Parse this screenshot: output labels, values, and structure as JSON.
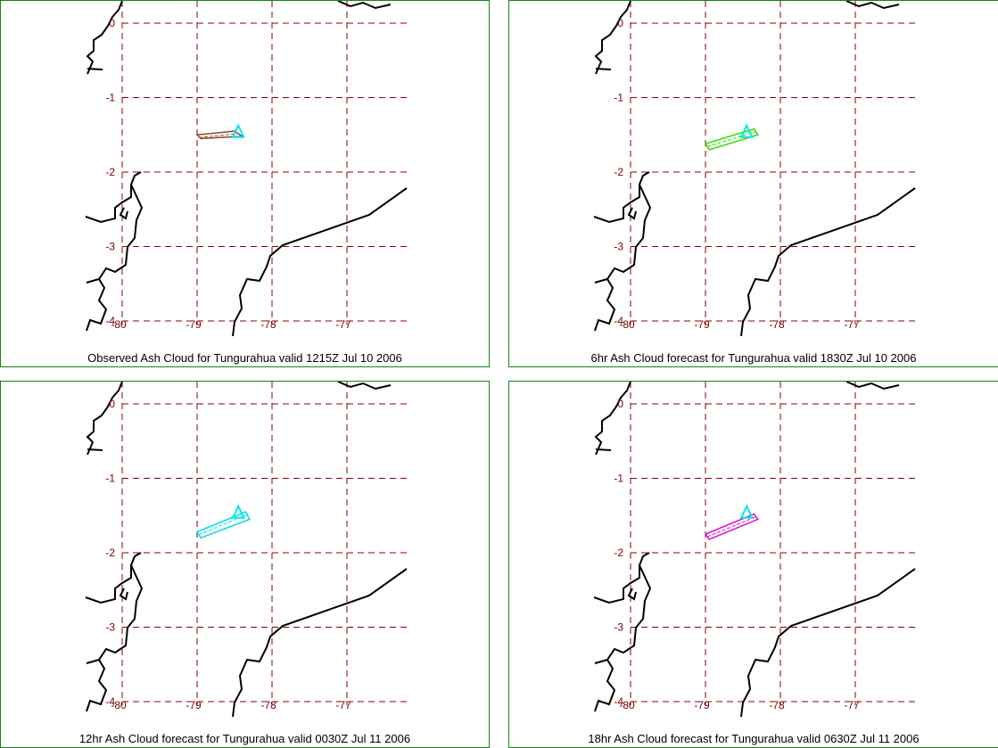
{
  "panels": [
    {
      "id": "p1",
      "caption": "Observed Ash Cloud for Tungurahua valid 1215Z Jul 10 2006",
      "cloud_color": "#8b4a2b",
      "cloud": [
        [
          -79,
          -1.5
        ],
        [
          -78.5,
          -1.45
        ],
        [
          -78.4,
          -1.52
        ],
        [
          -78.95,
          -1.55
        ]
      ]
    },
    {
      "id": "p2",
      "caption": "6hr Ash Cloud forecast for Tungurahua valid 1830Z Jul 10 2006",
      "cloud_color": "#33dd00",
      "cloud": [
        [
          -79,
          -1.62
        ],
        [
          -78.35,
          -1.42
        ],
        [
          -78.3,
          -1.5
        ],
        [
          -78.95,
          -1.7
        ]
      ]
    },
    {
      "id": "p3",
      "caption": "12hr Ash Cloud forecast for Tungurahua valid 0030Z Jul 11 2006",
      "cloud_color": "#00ddee",
      "cloud": [
        [
          -79,
          -1.72
        ],
        [
          -78.35,
          -1.45
        ],
        [
          -78.3,
          -1.55
        ],
        [
          -78.95,
          -1.8
        ]
      ]
    },
    {
      "id": "p4",
      "caption": "18hr Ash Cloud forecast for Tungurahua valid 0630Z Jul 11 2006",
      "cloud_color": "#dd11cc",
      "cloud": [
        [
          -79,
          -1.75
        ],
        [
          -78.35,
          -1.48
        ],
        [
          -78.3,
          -1.55
        ],
        [
          -78.95,
          -1.82
        ]
      ]
    }
  ],
  "volcano_marker_color": "#00e5ee",
  "volcano_lonlat": [
    -78.45,
    -1.47
  ],
  "grid_color": "#8b0000",
  "lat_labels": [
    "0",
    "-1",
    "-2",
    "-3",
    "-4"
  ],
  "lon_labels": [
    "-80",
    "-79",
    "-78",
    "-77"
  ],
  "lat_values": [
    0,
    -1,
    -2,
    -3,
    -4
  ],
  "lon_values": [
    -80,
    -79,
    -78,
    -77
  ]
}
